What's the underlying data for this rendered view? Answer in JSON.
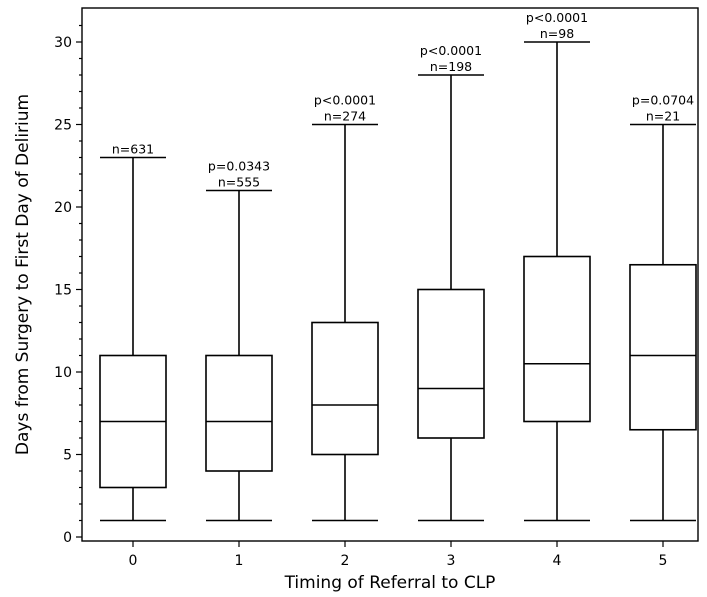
{
  "chart_data": {
    "type": "box",
    "xlabel": "Timing of Referral to CLP",
    "ylabel": "Days from Surgery to First Day of Delirium",
    "ylim": [
      0,
      31.5
    ],
    "yticks": [
      "0",
      "5",
      "10",
      "15",
      "20",
      "25",
      "30"
    ],
    "categories": [
      "0",
      "1",
      "2",
      "3",
      "4",
      "5"
    ],
    "boxes": [
      {
        "category": "0",
        "min": 1,
        "q1": 3,
        "median": 7,
        "q3": 11,
        "max": 23,
        "n_label": "n=631",
        "p_label": ""
      },
      {
        "category": "1",
        "min": 1,
        "q1": 4,
        "median": 7,
        "q3": 11,
        "max": 21,
        "n_label": "n=555",
        "p_label": "p=0.0343"
      },
      {
        "category": "2",
        "min": 1,
        "q1": 5,
        "median": 8,
        "q3": 13,
        "max": 25,
        "n_label": "n=274",
        "p_label": "p<0.0001"
      },
      {
        "category": "3",
        "min": 1,
        "q1": 6,
        "median": 9,
        "q3": 15,
        "max": 28,
        "n_label": "n=198",
        "p_label": "p<0.0001"
      },
      {
        "category": "4",
        "min": 1,
        "q1": 7,
        "median": 10.5,
        "q3": 17,
        "max": 30,
        "n_label": "n=98",
        "p_label": "p<0.0001"
      },
      {
        "category": "5",
        "min": 1,
        "q1": 6.5,
        "median": 11,
        "q3": 16.5,
        "max": 25,
        "n_label": "n=21",
        "p_label": "p=0.0704"
      }
    ],
    "grid": false,
    "legend": "none"
  }
}
